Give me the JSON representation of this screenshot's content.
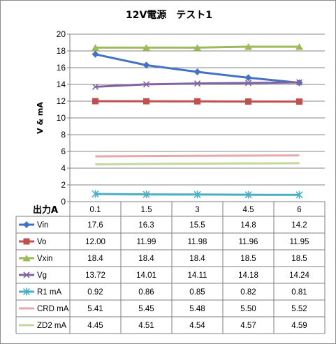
{
  "chart_data": {
    "type": "line",
    "title": "12V電源　テスト1",
    "xlabel": "出力A",
    "ylabel": "V & mA",
    "ylim": [
      0,
      20
    ],
    "ytick_step": 2,
    "grid": true,
    "legend": "data-table",
    "categories": [
      "0.1",
      "1.5",
      "3",
      "4.5",
      "6"
    ],
    "series": [
      {
        "name": "Vin",
        "values": [
          17.6,
          16.3,
          15.5,
          14.8,
          14.2
        ],
        "labels": [
          "17.6",
          "16.3",
          "15.5",
          "14.8",
          "14.2"
        ],
        "color": "#4472c4",
        "marker": "diamond"
      },
      {
        "name": "Vo",
        "values": [
          12.0,
          11.99,
          11.98,
          11.96,
          11.95
        ],
        "labels": [
          "12.00",
          "11.99",
          "11.98",
          "11.96",
          "11.95"
        ],
        "color": "#c0504d",
        "marker": "square"
      },
      {
        "name": "Vxin",
        "values": [
          18.4,
          18.4,
          18.4,
          18.5,
          18.5
        ],
        "labels": [
          "18.4",
          "18.4",
          "18.4",
          "18.5",
          "18.5"
        ],
        "color": "#9bbb59",
        "marker": "triangle"
      },
      {
        "name": "Vg",
        "values": [
          13.72,
          14.01,
          14.11,
          14.18,
          14.24
        ],
        "labels": [
          "13.72",
          "14.01",
          "14.11",
          "14.18",
          "14.24"
        ],
        "color": "#8064a2",
        "marker": "x"
      },
      {
        "name": "R1 mA",
        "values": [
          0.92,
          0.86,
          0.85,
          0.82,
          0.81
        ],
        "labels": [
          "0.92",
          "0.86",
          "0.85",
          "0.82",
          "0.81"
        ],
        "color": "#4bacc6",
        "marker": "star"
      },
      {
        "name": "CRD mA",
        "values": [
          5.41,
          5.45,
          5.48,
          5.5,
          5.52
        ],
        "labels": [
          "5.41",
          "5.45",
          "5.48",
          "5.50",
          "5.52"
        ],
        "color": "#e6a9a8",
        "marker": "none"
      },
      {
        "name": "ZD2 mA",
        "values": [
          4.45,
          4.51,
          4.54,
          4.57,
          4.59
        ],
        "labels": [
          "4.45",
          "4.51",
          "4.54",
          "4.57",
          "4.59"
        ],
        "color": "#c3d69b",
        "marker": "none"
      }
    ]
  }
}
